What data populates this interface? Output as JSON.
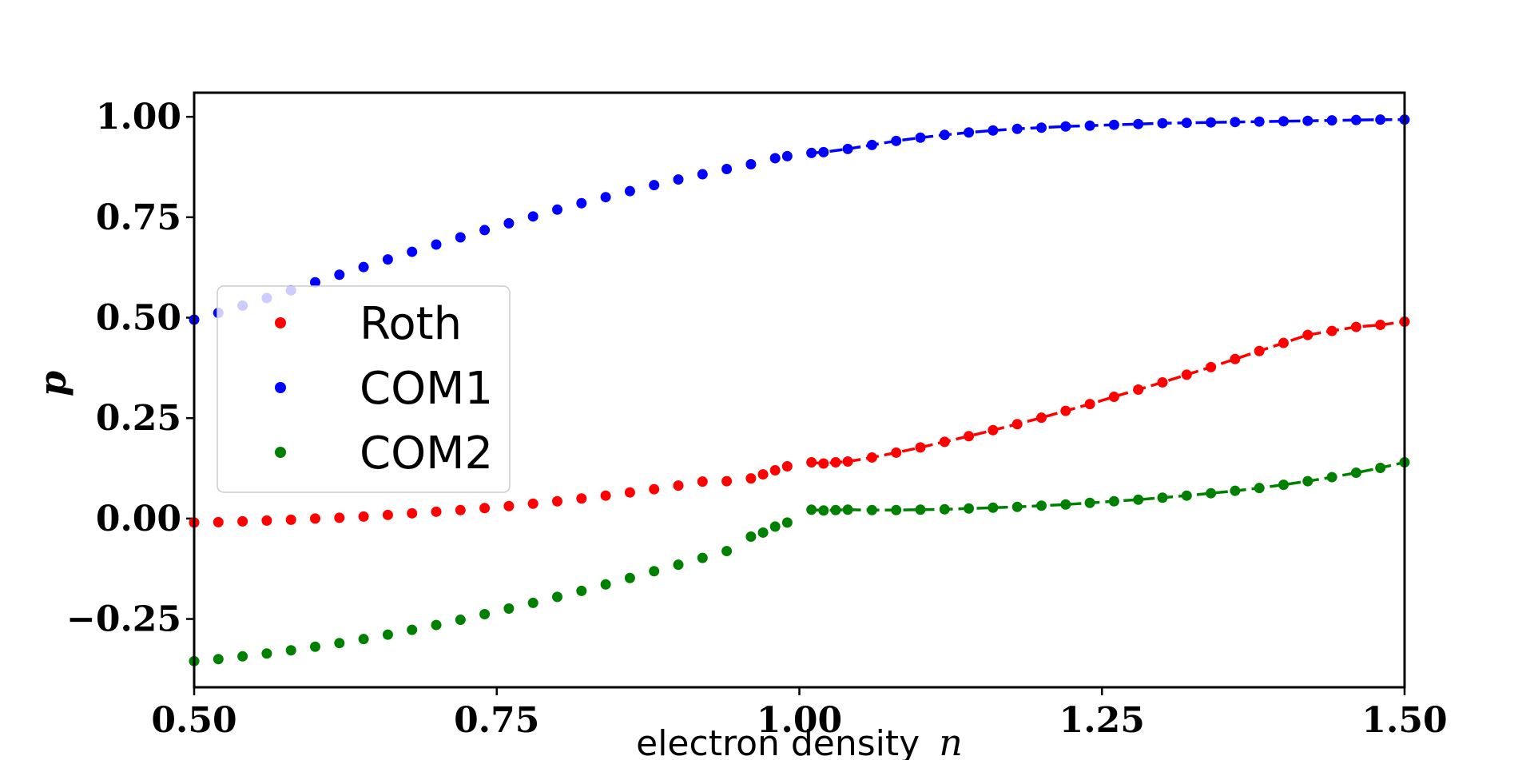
{
  "chart_data": {
    "type": "scatter",
    "title": "",
    "xlabel": "electron density",
    "xlabel_var": "n",
    "ylabel": "p",
    "xlim": [
      0.5,
      1.5
    ],
    "ylim": [
      -0.42,
      1.06
    ],
    "xticks": [
      0.5,
      0.75,
      1.0,
      1.25,
      1.5
    ],
    "xtick_labels": [
      "0.50",
      "0.75",
      "1.00",
      "1.25",
      "1.50"
    ],
    "yticks": [
      -0.25,
      0.0,
      0.25,
      0.5,
      0.75,
      1.0
    ],
    "ytick_labels": [
      "−0.25",
      "0.00",
      "0.25",
      "0.50",
      "0.75",
      "1.00"
    ],
    "legend_position": "center-left",
    "series": [
      {
        "name": "Roth",
        "color": "#ff0000",
        "dashed_fit_from": 1.01,
        "x": [
          0.5,
          0.52,
          0.54,
          0.56,
          0.58,
          0.6,
          0.62,
          0.64,
          0.66,
          0.68,
          0.7,
          0.72,
          0.74,
          0.76,
          0.78,
          0.8,
          0.82,
          0.84,
          0.86,
          0.88,
          0.9,
          0.92,
          0.94,
          0.96,
          0.97,
          0.98,
          0.99,
          1.01,
          1.02,
          1.03,
          1.04,
          1.06,
          1.08,
          1.1,
          1.12,
          1.14,
          1.16,
          1.18,
          1.2,
          1.22,
          1.24,
          1.26,
          1.28,
          1.3,
          1.32,
          1.34,
          1.36,
          1.38,
          1.4,
          1.42,
          1.44,
          1.46,
          1.48,
          1.5
        ],
        "y": [
          -0.01,
          -0.009,
          -0.007,
          -0.005,
          -0.003,
          0.0,
          0.002,
          0.005,
          0.009,
          0.013,
          0.017,
          0.021,
          0.026,
          0.031,
          0.037,
          0.043,
          0.05,
          0.057,
          0.065,
          0.073,
          0.082,
          0.092,
          0.093,
          0.1,
          0.11,
          0.12,
          0.13,
          0.14,
          0.137,
          0.14,
          0.142,
          0.152,
          0.164,
          0.177,
          0.191,
          0.205,
          0.22,
          0.235,
          0.251,
          0.268,
          0.285,
          0.303,
          0.321,
          0.339,
          0.358,
          0.377,
          0.397,
          0.417,
          0.437,
          0.457,
          0.467,
          0.477,
          0.482,
          0.49
        ]
      },
      {
        "name": "COM1",
        "color": "#0000ff",
        "dashed_fit_from": 1.01,
        "x": [
          0.5,
          0.52,
          0.54,
          0.56,
          0.58,
          0.6,
          0.62,
          0.64,
          0.66,
          0.68,
          0.7,
          0.72,
          0.74,
          0.76,
          0.78,
          0.8,
          0.82,
          0.84,
          0.86,
          0.88,
          0.9,
          0.92,
          0.94,
          0.96,
          0.98,
          0.99,
          1.01,
          1.02,
          1.04,
          1.06,
          1.08,
          1.1,
          1.12,
          1.14,
          1.16,
          1.18,
          1.2,
          1.22,
          1.24,
          1.26,
          1.28,
          1.3,
          1.32,
          1.34,
          1.36,
          1.38,
          1.4,
          1.42,
          1.44,
          1.46,
          1.48,
          1.5
        ],
        "y": [
          0.495,
          0.512,
          0.53,
          0.549,
          0.568,
          0.588,
          0.607,
          0.626,
          0.645,
          0.664,
          0.682,
          0.7,
          0.718,
          0.735,
          0.752,
          0.769,
          0.785,
          0.8,
          0.815,
          0.83,
          0.844,
          0.857,
          0.87,
          0.882,
          0.897,
          0.902,
          0.91,
          0.912,
          0.92,
          0.93,
          0.94,
          0.948,
          0.955,
          0.961,
          0.966,
          0.97,
          0.973,
          0.976,
          0.978,
          0.98,
          0.982,
          0.984,
          0.985,
          0.986,
          0.987,
          0.988,
          0.989,
          0.99,
          0.991,
          0.992,
          0.993,
          0.993
        ]
      },
      {
        "name": "COM2",
        "color": "#008000",
        "dashed_fit_from": 1.01,
        "x": [
          0.5,
          0.52,
          0.54,
          0.56,
          0.58,
          0.6,
          0.62,
          0.64,
          0.66,
          0.68,
          0.7,
          0.72,
          0.74,
          0.76,
          0.78,
          0.8,
          0.82,
          0.84,
          0.86,
          0.88,
          0.9,
          0.92,
          0.94,
          0.96,
          0.97,
          0.98,
          0.99,
          1.01,
          1.02,
          1.03,
          1.04,
          1.06,
          1.08,
          1.1,
          1.12,
          1.14,
          1.16,
          1.18,
          1.2,
          1.22,
          1.24,
          1.26,
          1.28,
          1.3,
          1.32,
          1.34,
          1.36,
          1.38,
          1.4,
          1.42,
          1.44,
          1.46,
          1.48,
          1.5
        ],
        "y": [
          -0.355,
          -0.35,
          -0.343,
          -0.336,
          -0.328,
          -0.319,
          -0.31,
          -0.3,
          -0.289,
          -0.277,
          -0.265,
          -0.252,
          -0.238,
          -0.224,
          -0.21,
          -0.195,
          -0.18,
          -0.164,
          -0.148,
          -0.131,
          -0.115,
          -0.098,
          -0.081,
          -0.045,
          -0.035,
          -0.02,
          -0.01,
          0.022,
          0.02,
          0.021,
          0.022,
          0.021,
          0.021,
          0.022,
          0.023,
          0.025,
          0.027,
          0.029,
          0.032,
          0.035,
          0.039,
          0.043,
          0.047,
          0.052,
          0.057,
          0.063,
          0.069,
          0.076,
          0.084,
          0.093,
          0.103,
          0.114,
          0.126,
          0.14
        ]
      }
    ]
  }
}
